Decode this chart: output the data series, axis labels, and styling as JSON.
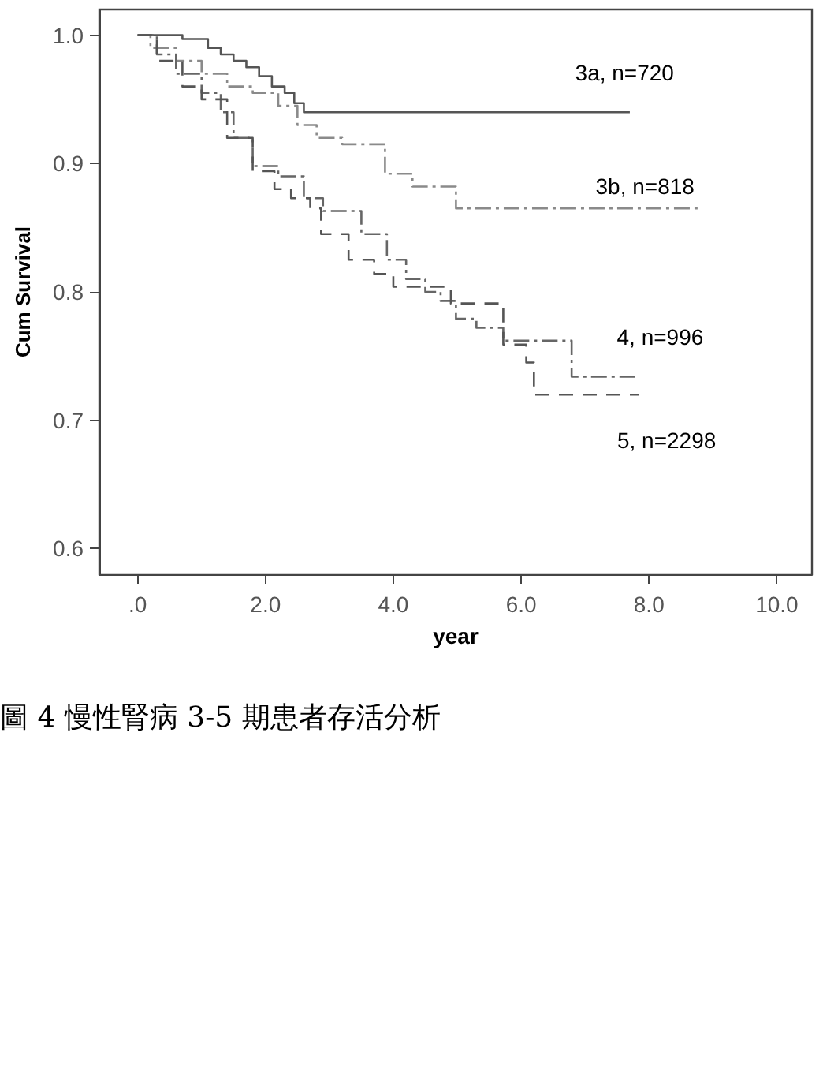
{
  "chart_data": {
    "type": "step",
    "xlabel": "year",
    "ylabel": "Cum Survival",
    "xlim": [
      -0.6,
      10.55
    ],
    "ylim": [
      0.58,
      1.02
    ],
    "xticks": [
      {
        "value": 0,
        "label": ".0"
      },
      {
        "value": 2,
        "label": "2.0"
      },
      {
        "value": 4,
        "label": "4.0"
      },
      {
        "value": 6,
        "label": "6.0"
      },
      {
        "value": 8,
        "label": "8.0"
      },
      {
        "value": 10,
        "label": "10.0"
      }
    ],
    "yticks": [
      {
        "value": 0.6,
        "label": "0.6"
      },
      {
        "value": 0.7,
        "label": "0.7"
      },
      {
        "value": 0.8,
        "label": "0.8"
      },
      {
        "value": 0.9,
        "label": "0.9"
      },
      {
        "value": 1.0,
        "label": "1.0"
      }
    ],
    "grid": false,
    "legend": false,
    "annotations": [
      "圖 4 慢性腎病 3-5 期患者存活分析"
    ],
    "series": [
      {
        "name": "3a, n=720",
        "color": "#555555",
        "line_style": "solid",
        "x": [
          0,
          0.7,
          1.1,
          1.3,
          1.5,
          1.7,
          1.9,
          2.1,
          2.3,
          2.45,
          2.6,
          7.7
        ],
        "values": [
          1.0,
          0.997,
          0.99,
          0.985,
          0.98,
          0.975,
          0.968,
          0.96,
          0.955,
          0.947,
          0.94,
          0.94
        ]
      },
      {
        "name": "3b, n=818",
        "color": "#8a8a8a",
        "line_style": "dotted",
        "x": [
          0,
          0.2,
          0.6,
          1.0,
          1.4,
          1.8,
          2.2,
          2.5,
          2.8,
          3.2,
          3.87,
          4.3,
          4.98,
          8.76
        ],
        "values": [
          1.0,
          0.99,
          0.98,
          0.97,
          0.96,
          0.955,
          0.945,
          0.93,
          0.92,
          0.915,
          0.892,
          0.882,
          0.865,
          0.865
        ]
      },
      {
        "name": "4, n=996",
        "color": "#666666",
        "line_style": "dotted",
        "x": [
          0,
          0.3,
          0.6,
          1.0,
          1.3,
          1.5,
          1.8,
          2.2,
          2.6,
          2.9,
          3.5,
          3.9,
          4.2,
          4.5,
          4.74,
          4.98,
          5.3,
          5.72,
          6.79,
          7.84
        ],
        "values": [
          1.0,
          0.985,
          0.97,
          0.955,
          0.94,
          0.92,
          0.898,
          0.89,
          0.873,
          0.863,
          0.845,
          0.825,
          0.81,
          0.8,
          0.793,
          0.779,
          0.772,
          0.762,
          0.734,
          0.734
        ]
      },
      {
        "name": "5, n=2298",
        "color": "#555555",
        "line_style": "dashed",
        "x": [
          0,
          0.3,
          0.7,
          1.0,
          1.4,
          1.8,
          2.14,
          2.4,
          2.7,
          2.87,
          3.3,
          3.7,
          4.0,
          4.9,
          5.72,
          6.08,
          6.2,
          7.84
        ],
        "values": [
          1.0,
          0.98,
          0.96,
          0.95,
          0.92,
          0.894,
          0.88,
          0.873,
          0.865,
          0.845,
          0.825,
          0.814,
          0.804,
          0.791,
          0.759,
          0.745,
          0.72,
          0.72
        ]
      }
    ]
  }
}
